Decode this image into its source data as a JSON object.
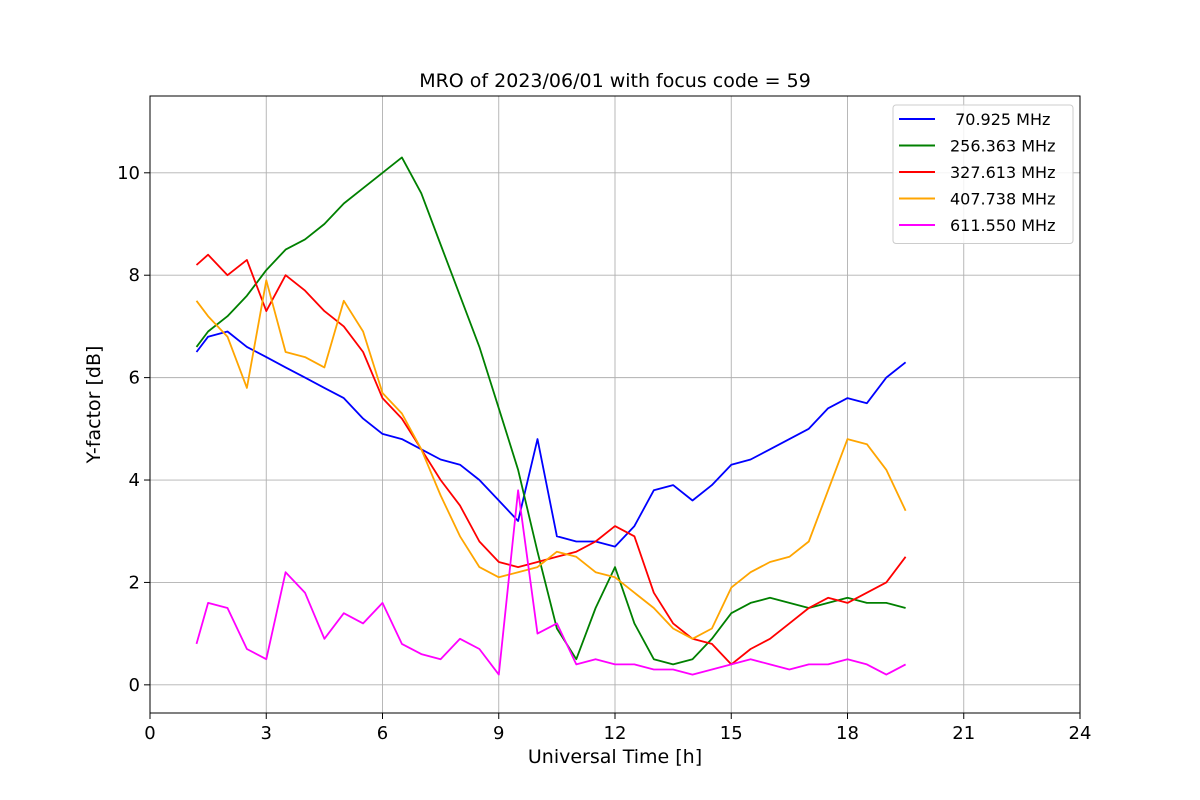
{
  "chart_data": {
    "type": "line",
    "title": "MRO of 2023/06/01 with focus code = 59",
    "xlabel": "Universal Time [h]",
    "ylabel": "Y-factor [dB]",
    "xlim": [
      0,
      24
    ],
    "ylim": [
      -0.55,
      11.5
    ],
    "xticks": [
      0,
      3,
      6,
      9,
      12,
      15,
      18,
      21,
      24
    ],
    "yticks": [
      0,
      2,
      4,
      6,
      8,
      10
    ],
    "grid": true,
    "legend_position": "top-right",
    "series": [
      {
        "name": " 70.925 MHz",
        "color": "#0000ff",
        "x": [
          1.2,
          1.5,
          2.0,
          2.5,
          3.0,
          3.5,
          4.0,
          4.5,
          5.0,
          5.5,
          6.0,
          6.5,
          7.0,
          7.5,
          8.0,
          8.5,
          9.0,
          9.5,
          10.0,
          10.5,
          11.0,
          11.5,
          12.0,
          12.5,
          13.0,
          13.5,
          14.0,
          14.5,
          15.0,
          15.5,
          16.0,
          16.5,
          17.0,
          17.5,
          18.0,
          18.5,
          19.0,
          19.5
        ],
        "y": [
          6.5,
          6.8,
          6.9,
          6.6,
          6.4,
          6.2,
          6.0,
          5.8,
          5.6,
          5.2,
          4.9,
          4.8,
          4.6,
          4.4,
          4.3,
          4.0,
          3.6,
          3.2,
          4.8,
          2.9,
          2.8,
          2.8,
          2.7,
          3.1,
          3.8,
          3.9,
          3.6,
          3.9,
          4.3,
          4.4,
          4.6,
          4.8,
          5.0,
          5.4,
          5.6,
          5.5,
          6.0,
          6.3
        ]
      },
      {
        "name": "256.363 MHz",
        "color": "#008000",
        "x": [
          1.2,
          1.5,
          2.0,
          2.5,
          3.0,
          3.5,
          4.0,
          4.5,
          5.0,
          5.5,
          6.0,
          6.5,
          7.0,
          7.5,
          8.0,
          8.5,
          9.0,
          9.5,
          10.0,
          10.5,
          11.0,
          11.5,
          12.0,
          12.5,
          13.0,
          13.5,
          14.0,
          14.5,
          15.0,
          15.5,
          16.0,
          16.5,
          17.0,
          17.5,
          18.0,
          18.5,
          19.0,
          19.5
        ],
        "y": [
          6.6,
          6.9,
          7.2,
          7.6,
          8.1,
          8.5,
          8.7,
          9.0,
          9.4,
          9.7,
          10.0,
          10.3,
          9.6,
          8.6,
          7.6,
          6.6,
          5.4,
          4.2,
          2.6,
          1.1,
          0.5,
          1.5,
          2.3,
          1.2,
          0.5,
          0.4,
          0.5,
          0.9,
          1.4,
          1.6,
          1.7,
          1.6,
          1.5,
          1.6,
          1.7,
          1.6,
          1.6,
          1.5
        ]
      },
      {
        "name": "327.613 MHz",
        "color": "#ff0000",
        "x": [
          1.2,
          1.5,
          2.0,
          2.5,
          3.0,
          3.5,
          4.0,
          4.5,
          5.0,
          5.5,
          6.0,
          6.5,
          7.0,
          7.5,
          8.0,
          8.5,
          9.0,
          9.5,
          10.0,
          10.5,
          11.0,
          11.5,
          12.0,
          12.5,
          13.0,
          13.5,
          14.0,
          14.5,
          15.0,
          15.5,
          16.0,
          16.5,
          17.0,
          17.5,
          18.0,
          18.5,
          19.0,
          19.5
        ],
        "y": [
          8.2,
          8.4,
          8.0,
          8.3,
          7.3,
          8.0,
          7.7,
          7.3,
          7.0,
          6.5,
          5.6,
          5.2,
          4.6,
          4.0,
          3.5,
          2.8,
          2.4,
          2.3,
          2.4,
          2.5,
          2.6,
          2.8,
          3.1,
          2.9,
          1.8,
          1.2,
          0.9,
          0.8,
          0.4,
          0.7,
          0.9,
          1.2,
          1.5,
          1.7,
          1.6,
          1.8,
          2.0,
          2.5
        ]
      },
      {
        "name": "407.738 MHz",
        "color": "#ffa500",
        "x": [
          1.2,
          1.5,
          2.0,
          2.5,
          3.0,
          3.5,
          4.0,
          4.5,
          5.0,
          5.5,
          6.0,
          6.5,
          7.0,
          7.5,
          8.0,
          8.5,
          9.0,
          9.5,
          10.0,
          10.5,
          11.0,
          11.5,
          12.0,
          12.5,
          13.0,
          13.5,
          14.0,
          14.5,
          15.0,
          15.5,
          16.0,
          16.5,
          17.0,
          17.5,
          18.0,
          18.5,
          19.0,
          19.5
        ],
        "y": [
          7.5,
          7.2,
          6.8,
          5.8,
          7.9,
          6.5,
          6.4,
          6.2,
          7.5,
          6.9,
          5.7,
          5.3,
          4.6,
          3.7,
          2.9,
          2.3,
          2.1,
          2.2,
          2.3,
          2.6,
          2.5,
          2.2,
          2.1,
          1.8,
          1.5,
          1.1,
          0.9,
          1.1,
          1.9,
          2.2,
          2.4,
          2.5,
          2.8,
          3.8,
          4.8,
          4.7,
          4.2,
          3.4
        ]
      },
      {
        "name": "611.550 MHz",
        "color": "#ff00ff",
        "x": [
          1.2,
          1.5,
          2.0,
          2.5,
          3.0,
          3.5,
          4.0,
          4.5,
          5.0,
          5.5,
          6.0,
          6.5,
          7.0,
          7.5,
          8.0,
          8.5,
          9.0,
          9.5,
          10.0,
          10.5,
          11.0,
          11.5,
          12.0,
          12.5,
          13.0,
          13.5,
          14.0,
          14.5,
          15.0,
          15.5,
          16.0,
          16.5,
          17.0,
          17.5,
          18.0,
          18.5,
          19.0,
          19.5
        ],
        "y": [
          0.8,
          1.6,
          1.5,
          0.7,
          0.5,
          2.2,
          1.8,
          0.9,
          1.4,
          1.2,
          1.6,
          0.8,
          0.6,
          0.5,
          0.9,
          0.7,
          0.2,
          3.8,
          1.0,
          1.2,
          0.4,
          0.5,
          0.4,
          0.4,
          0.3,
          0.3,
          0.2,
          0.3,
          0.4,
          0.5,
          0.4,
          0.3,
          0.4,
          0.4,
          0.5,
          0.4,
          0.2,
          0.4
        ]
      }
    ]
  }
}
